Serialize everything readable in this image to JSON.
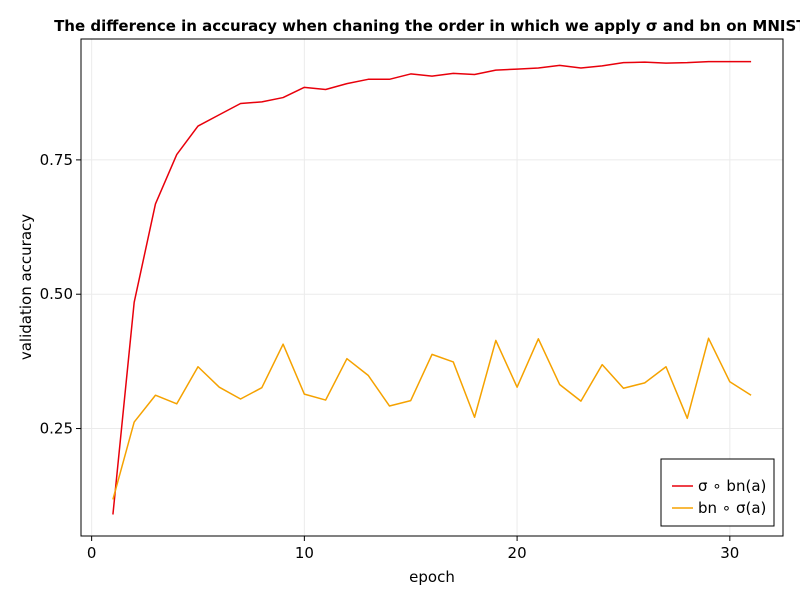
{
  "chart_data": {
    "type": "line",
    "title": "The difference in accuracy when chaning the order in which we apply σ and bn on MNIST.",
    "xlabel": "epoch",
    "ylabel": "validation accuracy",
    "xlim": [
      -0.5,
      32.5
    ],
    "ylim": [
      0.05,
      0.975
    ],
    "x_ticks": [
      0,
      10,
      20,
      30
    ],
    "x_tick_labels": [
      "0",
      "10",
      "20",
      "30"
    ],
    "y_ticks": [
      0.25,
      0.5,
      0.75
    ],
    "y_tick_labels": [
      "0.25",
      "0.50",
      "0.75"
    ],
    "grid": true,
    "legend_position": "bottom-right",
    "x": [
      1,
      2,
      3,
      4,
      5,
      6,
      7,
      8,
      9,
      10,
      11,
      12,
      13,
      14,
      15,
      16,
      17,
      18,
      19,
      20,
      21,
      22,
      23,
      24,
      25,
      26,
      27,
      28,
      29,
      30,
      31
    ],
    "series": [
      {
        "name": "σ ∘ bn(a)",
        "color": "#e8000b",
        "values": [
          0.09,
          0.485,
          0.668,
          0.76,
          0.813,
          0.834,
          0.855,
          0.858,
          0.866,
          0.885,
          0.881,
          0.892,
          0.9,
          0.9,
          0.91,
          0.906,
          0.911,
          0.909,
          0.917,
          0.919,
          0.921,
          0.926,
          0.921,
          0.925,
          0.931,
          0.932,
          0.93,
          0.931,
          0.933,
          0.933,
          0.933
        ]
      },
      {
        "name": "bn ∘ σ(a)",
        "color": "#f5a200",
        "values": [
          0.118,
          0.262,
          0.312,
          0.296,
          0.365,
          0.327,
          0.305,
          0.326,
          0.407,
          0.314,
          0.303,
          0.38,
          0.349,
          0.292,
          0.302,
          0.388,
          0.374,
          0.271,
          0.414,
          0.327,
          0.417,
          0.332,
          0.301,
          0.369,
          0.325,
          0.335,
          0.365,
          0.269,
          0.418,
          0.337,
          0.312
        ]
      }
    ]
  }
}
